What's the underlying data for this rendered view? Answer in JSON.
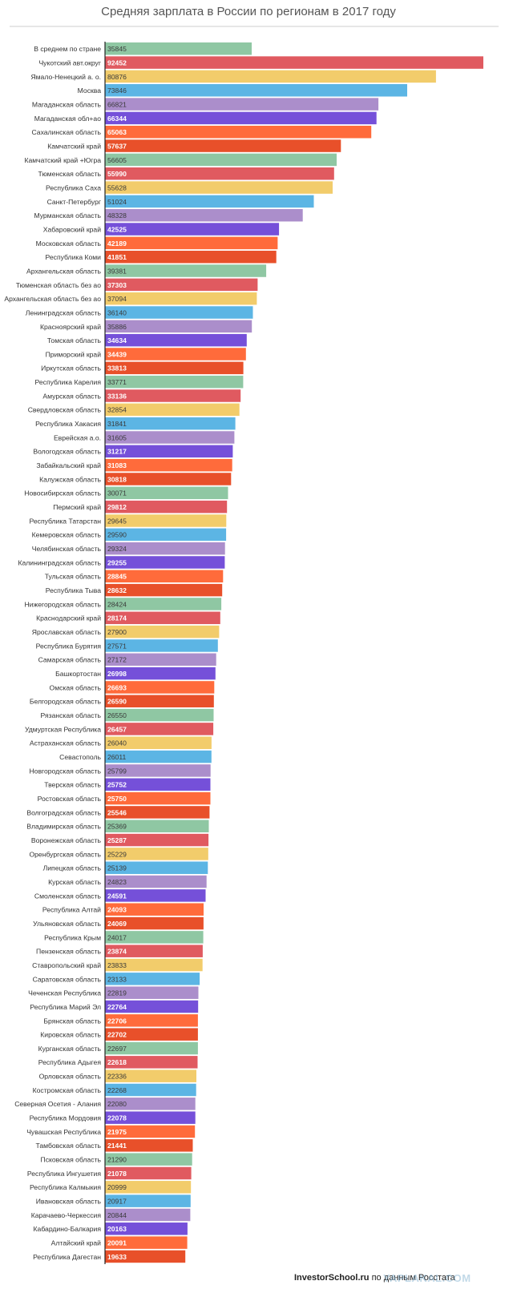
{
  "title": "Средняя зарплата в России по регионам в 2017 году",
  "footer": {
    "source": "InvestorSchool.ru",
    "note": "по данным Росстата"
  },
  "watermark": "YAPLAKAL.COM",
  "palette": [
    "#8fc7a3",
    "#e05a60",
    "#f2cc6b",
    "#5cb5e4",
    "#ab8ecb",
    "#7550d9",
    "#ff6b3b",
    "#e8502a"
  ],
  "chart_data": {
    "type": "bar",
    "orientation": "horizontal",
    "title": "Средняя зарплата в России по регионам в 2017 году",
    "xlim": [
      0,
      92452
    ],
    "categories": [
      "В среднем по стране",
      "Чукотский авт.округ",
      "Ямало-Ненецкий а. о.",
      "Москва",
      "Магаданская область",
      "Магаданская обл+ао",
      "Сахалинская область",
      "Камчатский край",
      "Камчатский край +Югра",
      "Тюменская область",
      "Республика Саха",
      "Санкт-Петербург",
      "Мурманская область",
      "Хабаровский край",
      "Московская область",
      "Республика Коми",
      "Архангельская область",
      "Тюменская область без ао",
      "Архангельская область без ао",
      "Ленинградская область",
      "Красноярский край",
      "Томская область",
      "Приморский край",
      "Иркутская область",
      "Республика Карелия",
      "Амурская область",
      "Свердловская область",
      "Республика Хакасия",
      "Еврейская а.о.",
      "Вологодская область",
      "Забайкальский край",
      "Калужская область",
      "Новосибирская область",
      "Пермский край",
      "Республика Татарстан",
      "Кемеровская область",
      "Челябинская область",
      "Калининградская область",
      "Тульская область",
      "Республика Тыва",
      "Нижегородская область",
      "Краснодарский край",
      "Ярославская область",
      "Республика Бурятия",
      "Самарская область",
      "Башкортостан",
      "Омская область",
      "Белгородская область",
      "Рязанская область",
      "Удмуртская Республика",
      "Астраханская область",
      "Севастополь",
      "Новгородская область",
      "Тверская область",
      "Ростовская область",
      "Волгоградская область",
      "Владимирская область",
      "Воронежская область",
      "Оренбургская область",
      "Липецкая область",
      "Курская область",
      "Смоленская область",
      "Республика Алтай",
      "Ульяновская область",
      "Республика Крым",
      "Пензенская область",
      "Ставропольский край",
      "Саратовская область",
      "Чеченская Республика",
      "Республика Марий Эл",
      "Брянская область",
      "Кировская область",
      "Курганская область",
      "Республика Адыгея",
      "Орловская область",
      "Костромская область",
      "Северная Осетия - Алания",
      "Республика Мордовия",
      "Чувашская Республика",
      "Тамбовская область",
      "Псковская область",
      "Республика Ингушетия",
      "Республика Калмыкия",
      "Ивановская область",
      "Карачаево-Черкессия",
      "Кабардино-Балкария",
      "Алтайский край",
      "Республика Дагестан"
    ],
    "values": [
      35845,
      92452,
      80876,
      73846,
      66821,
      66344,
      65063,
      57637,
      56605,
      55990,
      55628,
      51024,
      48328,
      42525,
      42189,
      41851,
      39381,
      37303,
      37094,
      36140,
      35886,
      34634,
      34439,
      33813,
      33771,
      33136,
      32854,
      31841,
      31605,
      31217,
      31083,
      30818,
      30071,
      29812,
      29645,
      29590,
      29324,
      29255,
      28845,
      28632,
      28424,
      28174,
      27900,
      27571,
      27172,
      26998,
      26693,
      26590,
      26550,
      26457,
      26040,
      26011,
      25799,
      25752,
      25750,
      25546,
      25369,
      25287,
      25229,
      25139,
      24823,
      24591,
      24093,
      24069,
      24017,
      23874,
      23833,
      23133,
      22819,
      22764,
      22706,
      22702,
      22697,
      22618,
      22336,
      22268,
      22080,
      22078,
      21975,
      21441,
      21290,
      21078,
      20999,
      20917,
      20844,
      20163,
      20091,
      19633
    ]
  }
}
